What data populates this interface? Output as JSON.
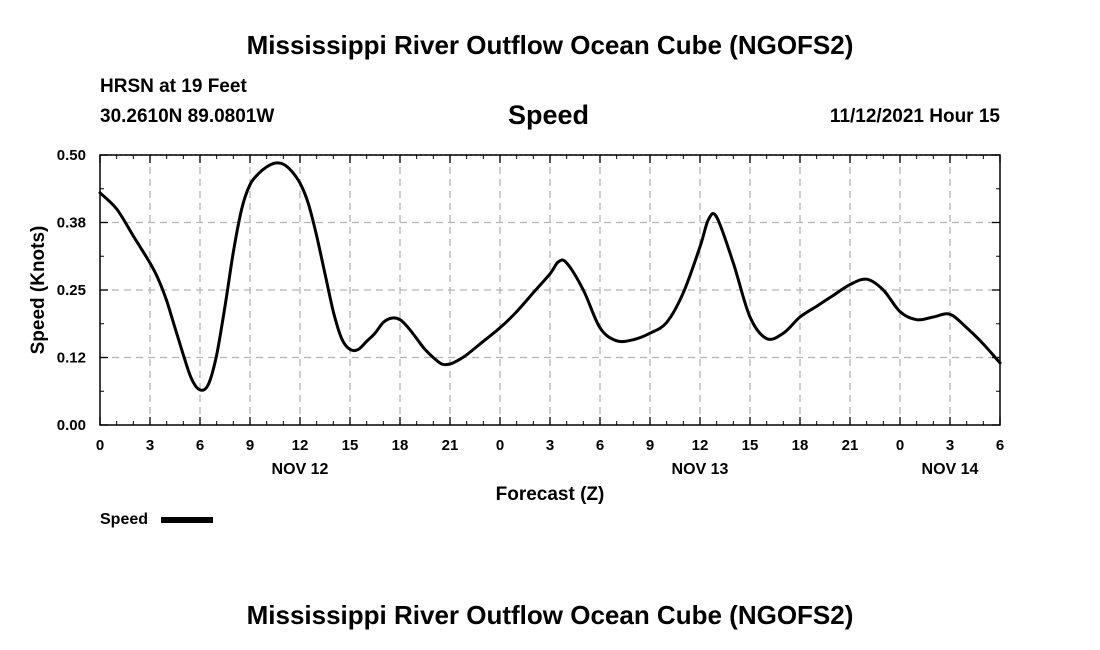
{
  "header": {
    "title": "Mississippi River Outflow Ocean Cube (NGOFS2)",
    "station": "HRSN at 19 Feet",
    "coordinates": "30.2610N  89.0801W",
    "datetime": "11/12/2021 Hour 15"
  },
  "footer": {
    "title": "Mississippi River Outflow Ocean Cube (NGOFS2)"
  },
  "chart_data": {
    "type": "line",
    "title": "Speed",
    "xlabel": "Forecast (Z)",
    "ylabel": "Speed (Knots)",
    "xlim": [
      0,
      54
    ],
    "ylim": [
      0,
      0.5
    ],
    "x_ticks": [
      0,
      3,
      6,
      9,
      12,
      15,
      18,
      21,
      24,
      27,
      30,
      33,
      36,
      39,
      42,
      45,
      48,
      51,
      54
    ],
    "x_tick_labels": [
      "0",
      "3",
      "6",
      "9",
      "12",
      "15",
      "18",
      "21",
      "0",
      "3",
      "6",
      "9",
      "12",
      "15",
      "18",
      "21",
      "0",
      "3",
      "6"
    ],
    "y_ticks": [
      0,
      0.125,
      0.25,
      0.375,
      0.5
    ],
    "y_tick_labels": [
      "0.00",
      "0.12",
      "0.25",
      "0.38",
      "0.50"
    ],
    "date_labels": [
      {
        "x": 12,
        "label": "NOV 12"
      },
      {
        "x": 36,
        "label": "NOV 13"
      },
      {
        "x": 51,
        "label": "NOV 14"
      }
    ],
    "grid": true,
    "legend_position": "bottom-left",
    "series": [
      {
        "name": "Speed",
        "color": "#000000",
        "x": [
          0,
          1,
          2,
          3,
          3.5,
          4,
          4.5,
          5,
          5.5,
          6,
          6.5,
          7,
          7.5,
          8,
          8.5,
          9,
          9.5,
          10,
          10.5,
          11,
          11.5,
          12,
          12.5,
          13,
          13.5,
          14,
          14.5,
          15,
          15.5,
          16,
          16.5,
          17,
          17.5,
          18,
          18.5,
          19,
          19.5,
          20,
          20.5,
          21,
          21.5,
          22,
          23,
          24,
          25,
          26,
          27,
          27.5,
          28,
          29,
          30,
          31,
          32,
          33,
          34,
          35,
          36,
          36.5,
          37,
          38,
          39,
          40,
          41,
          42,
          43,
          44,
          45,
          46,
          47,
          48,
          49,
          50,
          51,
          52,
          53,
          54
        ],
        "values": [
          0.43,
          0.4,
          0.35,
          0.3,
          0.27,
          0.23,
          0.18,
          0.13,
          0.085,
          0.065,
          0.075,
          0.13,
          0.22,
          0.32,
          0.4,
          0.445,
          0.465,
          0.478,
          0.485,
          0.483,
          0.47,
          0.448,
          0.41,
          0.35,
          0.28,
          0.21,
          0.16,
          0.14,
          0.14,
          0.155,
          0.17,
          0.19,
          0.198,
          0.195,
          0.18,
          0.16,
          0.14,
          0.125,
          0.113,
          0.113,
          0.12,
          0.13,
          0.155,
          0.18,
          0.21,
          0.245,
          0.28,
          0.302,
          0.3,
          0.25,
          0.18,
          0.156,
          0.158,
          0.17,
          0.19,
          0.245,
          0.33,
          0.38,
          0.385,
          0.3,
          0.2,
          0.16,
          0.17,
          0.2,
          0.22,
          0.24,
          0.26,
          0.27,
          0.25,
          0.21,
          0.195,
          0.2,
          0.205,
          0.18,
          0.15,
          0.115
        ]
      }
    ]
  }
}
